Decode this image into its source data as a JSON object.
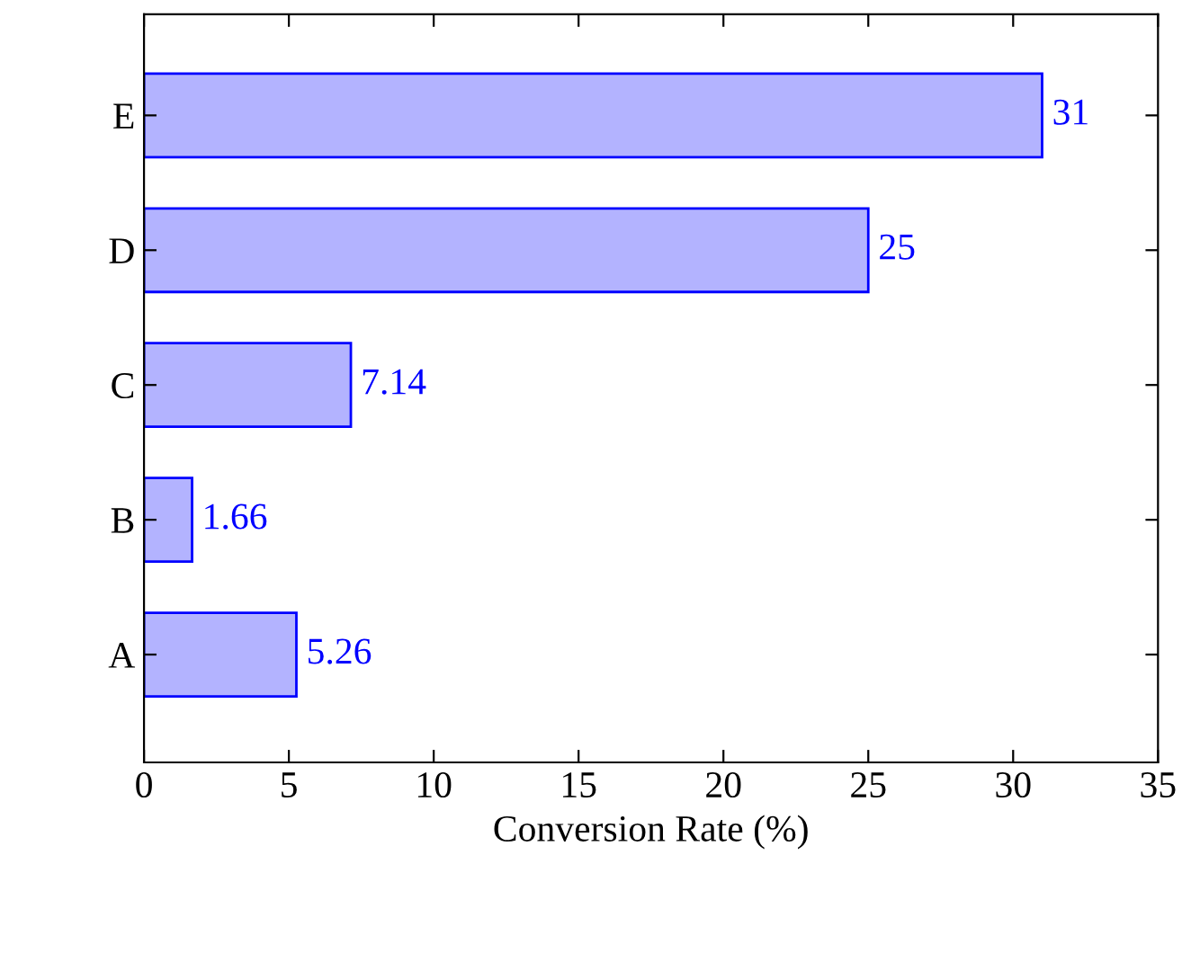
{
  "chart_data": {
    "type": "bar",
    "orientation": "horizontal",
    "xlabel": "Conversion Rate (%)",
    "categories": [
      "E",
      "D",
      "C",
      "B",
      "A"
    ],
    "values": [
      31,
      25,
      7.14,
      1.66,
      5.26
    ],
    "color": "#b3b3ff",
    "xlim": [
      0,
      35
    ],
    "xticks": [
      0,
      5,
      10,
      15,
      20,
      25,
      30,
      35
    ],
    "data_labels": true,
    "grid": false,
    "legend": false
  }
}
